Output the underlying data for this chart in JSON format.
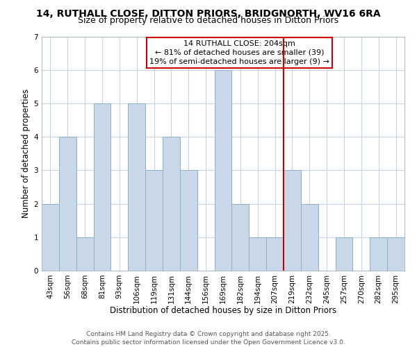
{
  "title": "14, RUTHALL CLOSE, DITTON PRIORS, BRIDGNORTH, WV16 6RA",
  "subtitle": "Size of property relative to detached houses in Ditton Priors",
  "xlabel": "Distribution of detached houses by size in Ditton Priors",
  "ylabel": "Number of detached properties",
  "bin_labels": [
    "43sqm",
    "56sqm",
    "68sqm",
    "81sqm",
    "93sqm",
    "106sqm",
    "119sqm",
    "131sqm",
    "144sqm",
    "156sqm",
    "169sqm",
    "182sqm",
    "194sqm",
    "207sqm",
    "219sqm",
    "232sqm",
    "245sqm",
    "257sqm",
    "270sqm",
    "282sqm",
    "295sqm"
  ],
  "bar_values": [
    2,
    4,
    1,
    5,
    0,
    5,
    3,
    4,
    3,
    0,
    6,
    2,
    1,
    1,
    3,
    2,
    0,
    1,
    0,
    1,
    1
  ],
  "bar_color": "#c8d8e8",
  "bar_edge_color": "#8ab0cc",
  "vline_color": "#cc0000",
  "vline_pos": 13.5,
  "ylim_max": 7,
  "yticks": [
    0,
    1,
    2,
    3,
    4,
    5,
    6,
    7
  ],
  "annotation_line1": "14 RUTHALL CLOSE: 204sqm",
  "annotation_line2": "← 81% of detached houses are smaller (39)",
  "annotation_line3": "19% of semi-detached houses are larger (9) →",
  "annotation_box_color": "#ffffff",
  "annotation_box_edge_color": "#cc0000",
  "footer1": "Contains HM Land Registry data © Crown copyright and database right 2025.",
  "footer2": "Contains public sector information licensed under the Open Government Licence v3.0.",
  "background_color": "#ffffff",
  "grid_color": "#c8d4e0",
  "title_fontsize": 10,
  "subtitle_fontsize": 9,
  "axis_label_fontsize": 8.5,
  "tick_fontsize": 7.5,
  "annotation_fontsize": 8,
  "footer_fontsize": 6.5
}
